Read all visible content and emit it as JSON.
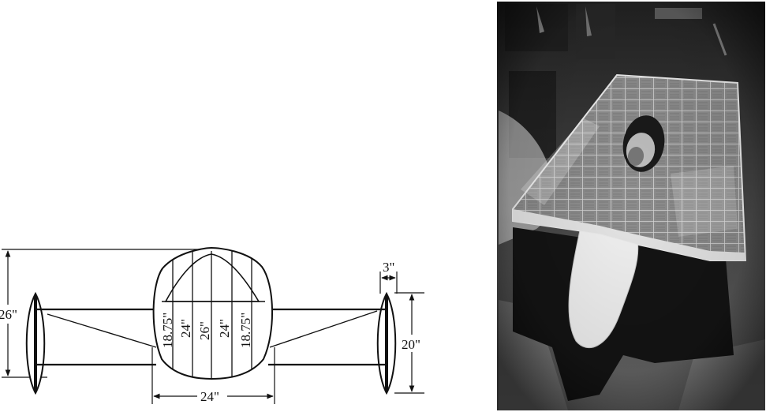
{
  "diagram": {
    "dimensions": {
      "overall_height": "26\"",
      "wheel_gap": "3\"",
      "wheel_height": "20\"",
      "body_width": "24\""
    },
    "body_sections": [
      "18.75\"",
      "24\"",
      "26\"",
      "24\"",
      "18.75\""
    ]
  },
  "photo": {
    "subject": "solar-car-photo"
  }
}
